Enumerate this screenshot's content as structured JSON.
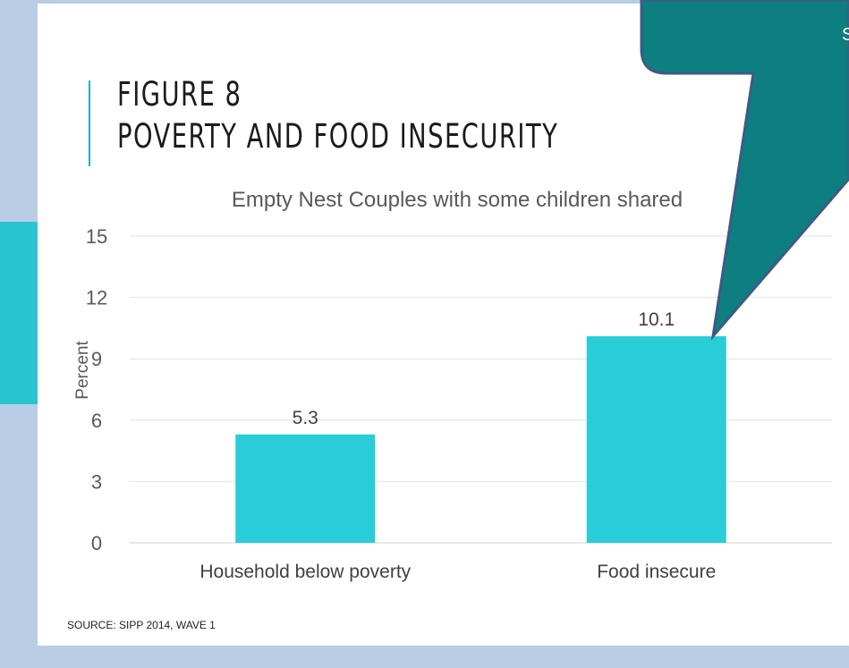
{
  "slide": {
    "title_line1": "FIGURE 8",
    "title_line2": "POVERTY AND FOOD INSECURITY",
    "source": "SOURCE: SIPP 2014, WAVE 1",
    "callout_text": "S"
  },
  "colors": {
    "background": "#b9cde5",
    "bar": "#29cdd8",
    "accent": "#29c4cf",
    "callout_fill": "#0d7f80",
    "callout_border": "#3f5a86"
  },
  "chart_data": {
    "type": "bar",
    "title": "Empty Nest Couples with some children shared",
    "xlabel": "",
    "ylabel": "Percent",
    "categories": [
      "Household below poverty",
      "Food insecure"
    ],
    "values": [
      5.3,
      10.1
    ],
    "value_labels": [
      "5.3",
      "10.1"
    ],
    "ylim": [
      0,
      15
    ],
    "yticks": [
      0,
      3,
      6,
      9,
      12,
      15
    ],
    "ytick_labels": [
      "0",
      "3",
      "6",
      "9",
      "12",
      "15"
    ],
    "grid": true,
    "legend": "none"
  }
}
